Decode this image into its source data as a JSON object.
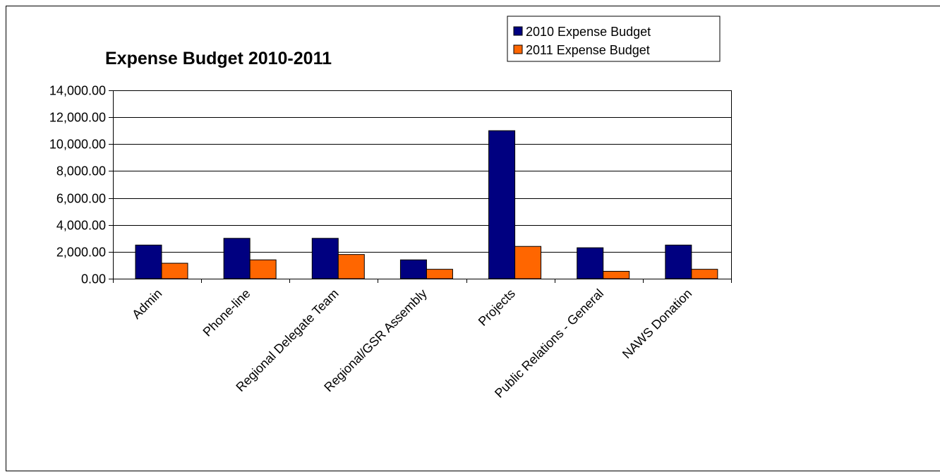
{
  "chart_data": {
    "type": "bar",
    "title": "Expense Budget 2010-2011",
    "xlabel": "",
    "ylabel": "",
    "ylim": [
      0,
      14000
    ],
    "yticks": [
      0,
      2000,
      4000,
      6000,
      8000,
      10000,
      12000,
      14000
    ],
    "ytick_labels": [
      "0.00",
      "2,000.00",
      "4,000.00",
      "6,000.00",
      "8,000.00",
      "10,000.00",
      "12,000.00",
      "14,000.00"
    ],
    "grid": true,
    "legend_position": "top-right",
    "categories": [
      "Admin",
      "Phone-line",
      "Regional Delegate Team",
      "Regional/GSR Assembly",
      "Projects",
      "Public Relations - General",
      "NAWS Donation"
    ],
    "series": [
      {
        "name": "2010 Expense Budget",
        "color": "#000080",
        "values": [
          2500,
          3000,
          3000,
          1400,
          11000,
          2300,
          2500
        ]
      },
      {
        "name": "2011 Expense Budget",
        "color": "#FF6600",
        "values": [
          1150,
          1400,
          1800,
          700,
          2400,
          550,
          700
        ]
      }
    ]
  }
}
